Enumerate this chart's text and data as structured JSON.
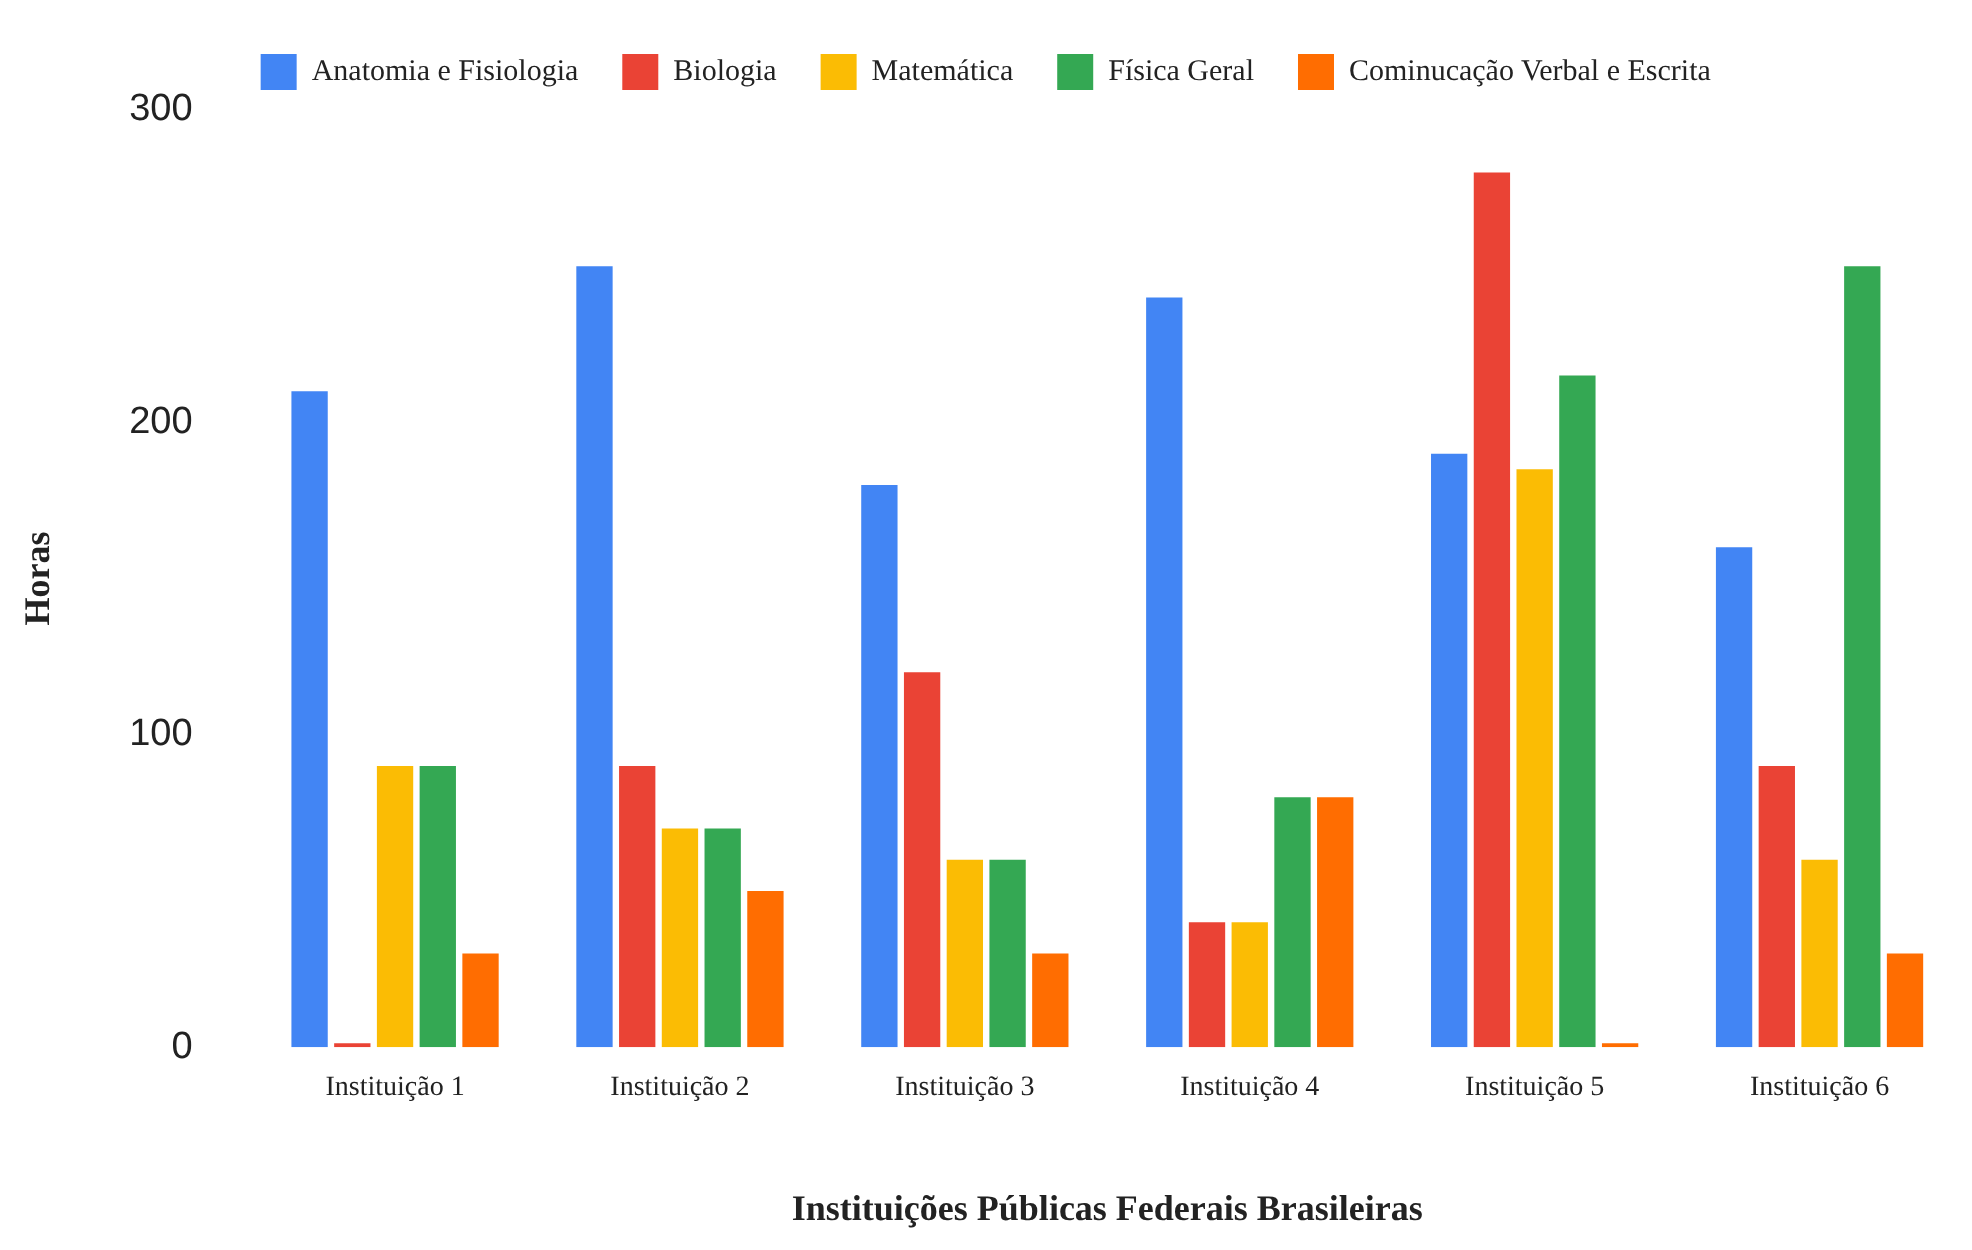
{
  "chart_data": {
    "type": "bar",
    "xlabel": "Instituições Públicas Federais Brasileiras",
    "ylabel": "Horas",
    "categories": [
      "Instituição 1",
      "Instituição 2",
      "Instituição 3",
      "Instituição 4",
      "Instituição 5",
      "Instituição 6"
    ],
    "series": [
      {
        "name": "Anatomia e Fisiologia",
        "color": "#4285f4",
        "values": [
          210,
          250,
          180,
          240,
          190,
          160
        ]
      },
      {
        "name": "Biologia",
        "color": "#ea4335",
        "values": [
          0,
          90,
          120,
          40,
          280,
          90
        ]
      },
      {
        "name": "Matemática",
        "color": "#fbbc04",
        "values": [
          90,
          70,
          60,
          40,
          185,
          60
        ]
      },
      {
        "name": "Física Geral",
        "color": "#34a853",
        "values": [
          90,
          70,
          60,
          80,
          215,
          250
        ]
      },
      {
        "name": "Cominucação Verbal e Escrita",
        "color": "#ff6d01",
        "values": [
          30,
          50,
          30,
          80,
          0,
          30
        ]
      }
    ],
    "ylim": [
      0,
      300
    ],
    "yticks": [
      0,
      100,
      200,
      300
    ],
    "grid": false,
    "legend": "top"
  }
}
